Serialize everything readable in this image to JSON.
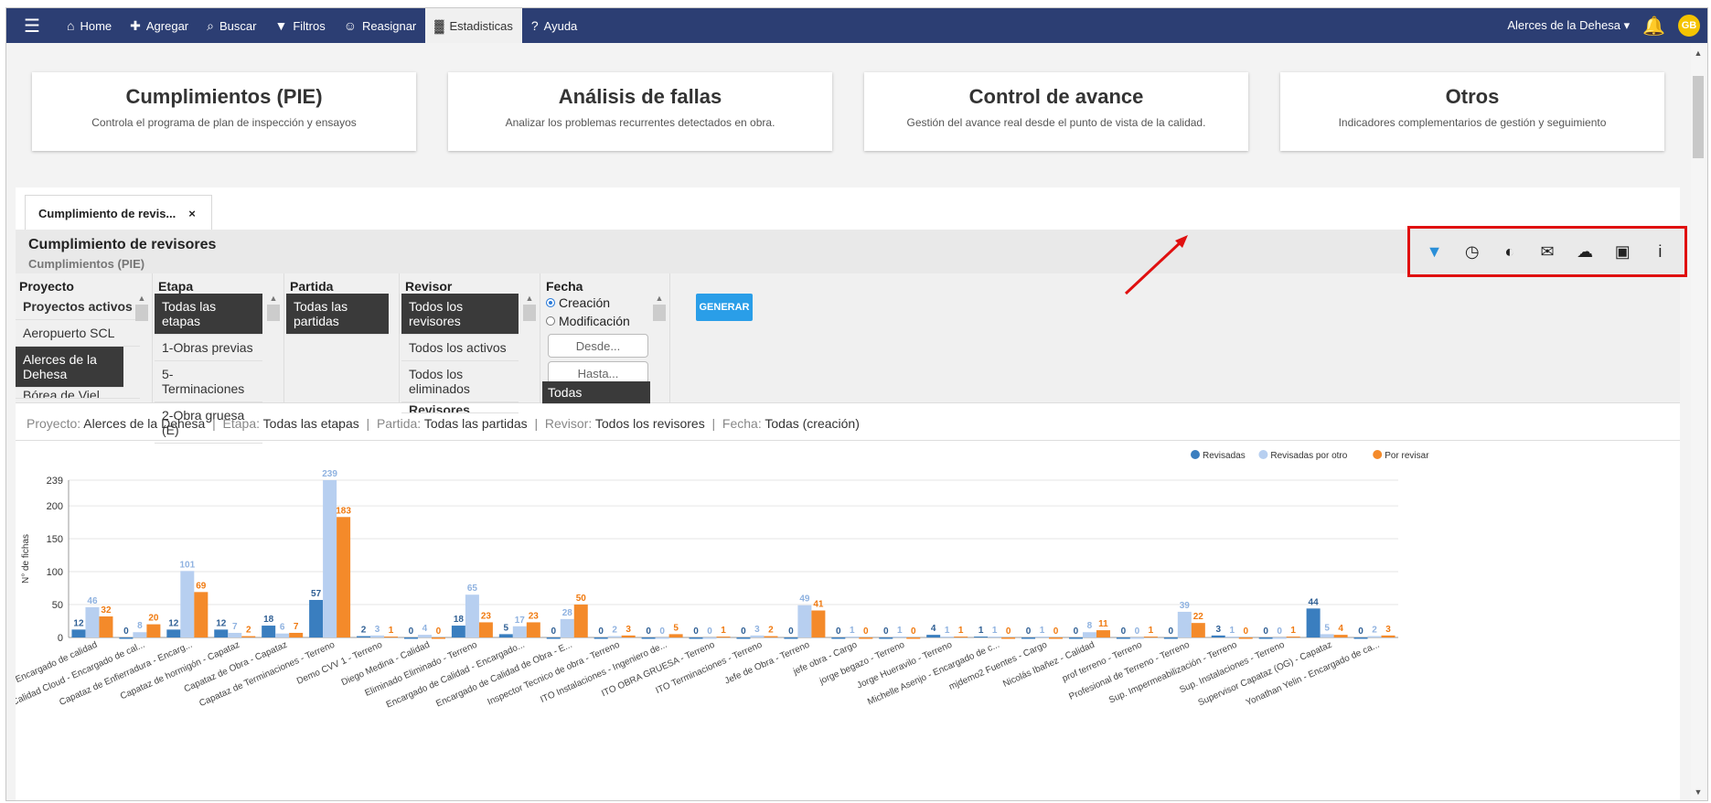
{
  "nav": {
    "items": [
      {
        "icon": "home-icon",
        "glyph": "⌂",
        "label": "Home"
      },
      {
        "icon": "plus-icon",
        "glyph": "✚",
        "label": "Agregar"
      },
      {
        "icon": "search-icon",
        "glyph": "⌕",
        "label": "Buscar"
      },
      {
        "icon": "filter-icon",
        "glyph": "▼",
        "label": "Filtros"
      },
      {
        "icon": "users-icon",
        "glyph": "☺",
        "label": "Reasignar"
      },
      {
        "icon": "bar-chart-icon",
        "glyph": "▓",
        "label": "Estadisticas"
      },
      {
        "icon": "question-icon",
        "glyph": "?",
        "label": "Ayuda"
      }
    ],
    "project": "Alerces de la Dehesa",
    "avatar": "GB"
  },
  "cards": [
    {
      "title": "Cumplimientos (PIE)",
      "desc": "Controla el programa de plan de inspección y ensayos"
    },
    {
      "title": "Análisis de fallas",
      "desc": "Analizar los problemas recurrentes detectados en obra."
    },
    {
      "title": "Control de avance",
      "desc": "Gestión del avance real desde el punto de vista de la calidad."
    },
    {
      "title": "Otros",
      "desc": "Indicadores complementarios de gestión y seguimiento"
    }
  ],
  "tab": {
    "label": "Cumplimiento de revis...",
    "close": "×"
  },
  "report": {
    "title": "Cumplimiento de revisores",
    "subtitle": "Cumplimientos (PIE)"
  },
  "filters": {
    "proyecto": {
      "header": "Proyecto",
      "options": [
        "Proyectos activos",
        "Aeropuerto SCL",
        "Alerces de la Dehesa",
        "Bórea de Viel..."
      ]
    },
    "etapa": {
      "header": "Etapa",
      "options": [
        "Todas las etapas",
        "1-Obras previas",
        "5-Terminaciones",
        "2-Obra gruesa (E)"
      ]
    },
    "partida": {
      "header": "Partida",
      "options": [
        "Todas las partidas"
      ]
    },
    "revisor": {
      "header": "Revisor",
      "options": [
        "Todos los revisores",
        "Todos los activos",
        "Todos los eliminados",
        "Revisores activos"
      ]
    },
    "fecha": {
      "header": "Fecha",
      "radio1": "Creación",
      "radio2": "Modificación",
      "desde": "Desde...",
      "hasta": "Hasta...",
      "selected": "Todas"
    },
    "generate": "GENERAR"
  },
  "summary": {
    "proyecto_l": "Proyecto:",
    "proyecto_v": "Alerces de la Dehesa",
    "etapa_l": "Etapa:",
    "etapa_v": "Todas las etapas",
    "partida_l": "Partida:",
    "partida_v": "Todas las partidas",
    "revisor_l": "Revisor:",
    "revisor_v": "Todos los revisores",
    "fecha_l": "Fecha:",
    "fecha_v": "Todas (creación)",
    "sep": "|"
  },
  "colors": {
    "revisadas": "#3a7ebf",
    "revisadas_otro": "#b7cff0",
    "por_revisar": "#f48a2a",
    "nav": "#2c3e73",
    "highlight": "#e01010"
  },
  "chart_data": {
    "type": "bar",
    "ylabel": "N° de fichas",
    "ylim": [
      0,
      239
    ],
    "yticks": [
      0,
      50,
      100,
      150,
      200,
      239
    ],
    "legend_position": "top-right",
    "categories": [
      "- Encargado de calidad",
      "Calidad Cloud - Encargado de cal...",
      "Capataz de Enfierradura - Encarg...",
      "Capataz de hormigón - Capataz",
      "Capataz de Obra - Capataz",
      "Capataz de Terminaciones - Terreno",
      "Demo CVV 1 - Terreno",
      "Diego Medina - Calidad",
      "Eliminado Eliminado - Terreno",
      "Encargado de Calidad - Encargado...",
      "Encargado de Calidad de Obra - E...",
      "Inspector Tecnico de obra - Terreno",
      "ITO Instalaciones - Ingeniero de...",
      "ITO OBRA GRUESA - Terreno",
      "ITO Terminaciones - Terreno",
      "Jefe de Obra - Terreno",
      "jefe obra - Cargo",
      "jorge begazo - Terreno",
      "Jorge Hueravilo - Terreno",
      "Michelle Asenjo - Encargado de c...",
      "mjdemo2 Fuentes - Cargo",
      "Nicolás Ibañez - Calidad",
      "prof terreno - Terreno",
      "Profesional de Terreno - Terreno",
      "Sup. Impermeabilización - Terreno",
      "Sup. Instalaciones - Terreno",
      "Supervisor Capataz (OG) - Capataz",
      "Yonathan Yelin - Encargado de ca..."
    ],
    "series": [
      {
        "name": "Revisadas",
        "values": [
          12,
          0,
          12,
          12,
          18,
          57,
          2,
          0,
          18,
          5,
          0,
          0,
          0,
          0,
          0,
          0,
          0,
          0,
          4,
          1,
          0,
          0,
          0,
          0,
          3,
          0,
          44,
          0
        ]
      },
      {
        "name": "Revisadas por otro",
        "values": [
          46,
          8,
          101,
          7,
          6,
          239,
          3,
          4,
          65,
          17,
          28,
          2,
          0,
          0,
          3,
          49,
          1,
          1,
          1,
          1,
          1,
          8,
          0,
          39,
          1,
          0,
          5,
          2
        ]
      },
      {
        "name": "Por revisar",
        "values": [
          32,
          20,
          69,
          2,
          7,
          183,
          1,
          0,
          23,
          23,
          50,
          3,
          5,
          1,
          2,
          41,
          0,
          0,
          1,
          0,
          0,
          11,
          1,
          22,
          0,
          1,
          4,
          3
        ]
      }
    ]
  }
}
